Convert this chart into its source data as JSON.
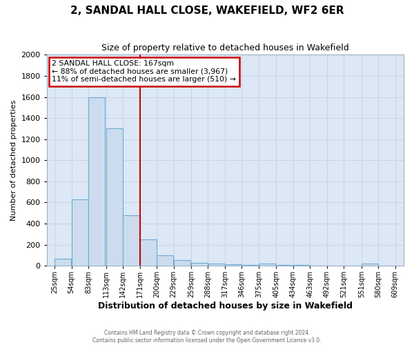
{
  "title": "2, SANDAL HALL CLOSE, WAKEFIELD, WF2 6ER",
  "subtitle": "Size of property relative to detached houses in Wakefield",
  "xlabel": "Distribution of detached houses by size in Wakefield",
  "ylabel": "Number of detached properties",
  "bar_left_edges": [
    25,
    54,
    83,
    113,
    142,
    171,
    200,
    229,
    259,
    288,
    317,
    346,
    375,
    405,
    434,
    463,
    492,
    521,
    551,
    580
  ],
  "bar_heights": [
    65,
    630,
    1600,
    1300,
    480,
    250,
    100,
    55,
    30,
    20,
    15,
    10,
    20,
    5,
    5,
    0,
    0,
    0,
    20,
    0
  ],
  "bin_width": 29,
  "bar_facecolor": "#ccdcee",
  "bar_edgecolor": "#6aaad4",
  "vline_x": 171,
  "vline_color": "#cc0000",
  "annotation_title": "2 SANDAL HALL CLOSE: 167sqm",
  "annotation_line1": "← 88% of detached houses are smaller (3,967)",
  "annotation_line2": "11% of semi-detached houses are larger (510) →",
  "annotation_box_edgecolor": "#cc0000",
  "annotation_bg": "#ffffff",
  "ylim": [
    0,
    2000
  ],
  "yticks": [
    0,
    200,
    400,
    600,
    800,
    1000,
    1200,
    1400,
    1600,
    1800,
    2000
  ],
  "xtick_labels": [
    "25sqm",
    "54sqm",
    "83sqm",
    "113sqm",
    "142sqm",
    "171sqm",
    "200sqm",
    "229sqm",
    "259sqm",
    "288sqm",
    "317sqm",
    "346sqm",
    "375sqm",
    "405sqm",
    "434sqm",
    "463sqm",
    "492sqm",
    "521sqm",
    "551sqm",
    "580sqm",
    "609sqm"
  ],
  "xtick_positions": [
    25,
    54,
    83,
    113,
    142,
    171,
    200,
    229,
    259,
    288,
    317,
    346,
    375,
    405,
    434,
    463,
    492,
    521,
    551,
    580,
    609
  ],
  "grid_color": "#c8d4e4",
  "plot_bg_color": "#dce8f5",
  "fig_bg_color": "#ffffff",
  "footnote1": "Contains HM Land Registry data © Crown copyright and database right 2024.",
  "footnote2": "Contains public sector information licensed under the Open Government Licence v3.0.",
  "title_fontsize": 11,
  "subtitle_fontsize": 9,
  "xlabel_fontsize": 9,
  "ylabel_fontsize": 8
}
